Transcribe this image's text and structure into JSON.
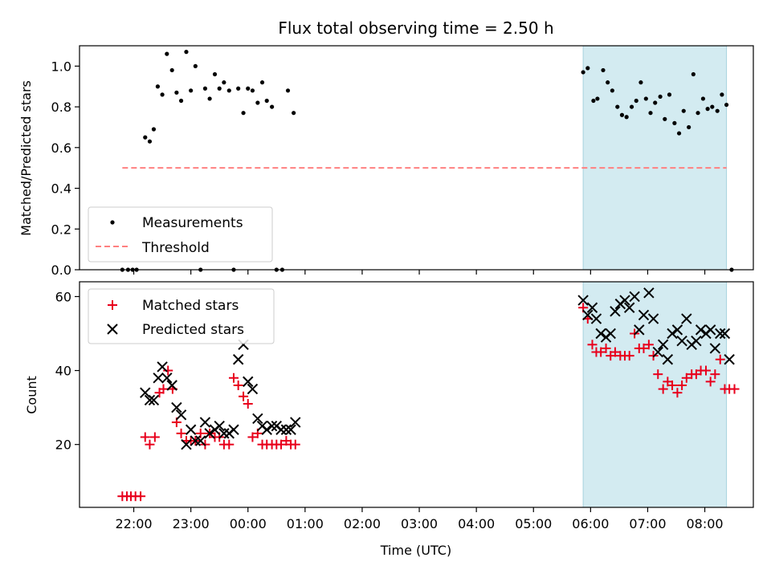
{
  "chart_data": {
    "title": "Flux total observing time = 2.50 h",
    "x_axis": {
      "label": "Time (UTC)",
      "range_hours": [
        21.05,
        32.85
      ],
      "ticks": [
        {
          "value": 22,
          "label": "22:00"
        },
        {
          "value": 23,
          "label": "23:00"
        },
        {
          "value": 24,
          "label": "00:00"
        },
        {
          "value": 25,
          "label": "01:00"
        },
        {
          "value": 26,
          "label": "02:00"
        },
        {
          "value": 27,
          "label": "03:00"
        },
        {
          "value": 28,
          "label": "04:00"
        },
        {
          "value": 29,
          "label": "05:00"
        },
        {
          "value": 30,
          "label": "06:00"
        },
        {
          "value": 31,
          "label": "07:00"
        },
        {
          "value": 32,
          "label": "08:00"
        }
      ]
    },
    "highlight_span": {
      "x_start": 29.87,
      "x_end": 32.38,
      "color": "#d3ebf1"
    },
    "panels": [
      {
        "type": "scatter",
        "ylabel": "Matched/Predicted stars",
        "ylim": [
          0,
          1.1
        ],
        "yticks": [
          0.0,
          0.2,
          0.4,
          0.6,
          0.8,
          1.0
        ],
        "ytick_labels": [
          "0.0",
          "0.2",
          "0.4",
          "0.6",
          "0.8",
          "1.0"
        ],
        "legend_position": "lower-left",
        "series": [
          {
            "name": "Measurements",
            "kind": "dot",
            "color": "#000000",
            "x": [
              21.8,
              21.9,
              21.98,
              22.05,
              22.2,
              22.28,
              22.35,
              22.42,
              22.5,
              22.58,
              22.67,
              22.75,
              22.83,
              22.92,
              23.0,
              23.08,
              23.17,
              23.25,
              23.33,
              23.42,
              23.5,
              23.58,
              23.67,
              23.75,
              23.83,
              23.92,
              24.0,
              24.08,
              24.17,
              24.25,
              24.33,
              24.42,
              24.5,
              24.6,
              24.7,
              24.8,
              29.87,
              29.95,
              30.05,
              30.12,
              30.22,
              30.3,
              30.38,
              30.47,
              30.55,
              30.63,
              30.72,
              30.8,
              30.88,
              30.97,
              31.05,
              31.13,
              31.22,
              31.3,
              31.38,
              31.47,
              31.55,
              31.63,
              31.72,
              31.8,
              31.88,
              31.97,
              32.05,
              32.13,
              32.22,
              32.3,
              32.38,
              32.47
            ],
            "y": [
              0,
              0,
              0,
              0,
              0.65,
              0.63,
              0.69,
              0.9,
              0.86,
              1.06,
              0.98,
              0.87,
              0.83,
              1.07,
              0.88,
              1.0,
              0,
              0.89,
              0.84,
              0.96,
              0.89,
              0.92,
              0.88,
              0,
              0.89,
              0.77,
              0.89,
              0.88,
              0.82,
              0.92,
              0.83,
              0.8,
              0,
              0,
              0.88,
              0.77,
              0.97,
              0.99,
              0.83,
              0.84,
              0.98,
              0.92,
              0.88,
              0.8,
              0.76,
              0.75,
              0.8,
              0.83,
              0.92,
              0.84,
              0.77,
              0.82,
              0.85,
              0.74,
              0.86,
              0.72,
              0.67,
              0.78,
              0.7,
              0.96,
              0.77,
              0.84,
              0.79,
              0.8,
              0.78,
              0.86,
              0.81,
              0
            ]
          },
          {
            "name": "Threshold",
            "kind": "dashed-line",
            "color": "#ff8080",
            "x": [
              21.8,
              32.38
            ],
            "y": [
              0.5,
              0.5
            ]
          }
        ]
      },
      {
        "type": "scatter",
        "ylabel": "Count",
        "ylim": [
          3,
          64
        ],
        "yticks": [
          20,
          40,
          60
        ],
        "ytick_labels": [
          "20",
          "40",
          "60"
        ],
        "legend_position": "upper-left",
        "series": [
          {
            "name": "Matched stars",
            "kind": "plus",
            "color": "#e8001c",
            "x": [
              21.8,
              21.88,
              21.95,
              22.03,
              22.12,
              22.2,
              22.28,
              22.37,
              22.45,
              22.52,
              22.6,
              22.68,
              22.75,
              22.83,
              22.92,
              23.0,
              23.08,
              23.17,
              23.25,
              23.33,
              23.42,
              23.5,
              23.58,
              23.67,
              23.75,
              23.83,
              23.92,
              24.0,
              24.08,
              24.17,
              24.25,
              24.33,
              24.42,
              24.5,
              24.58,
              24.67,
              24.75,
              24.83,
              29.87,
              29.95,
              30.03,
              30.1,
              30.18,
              30.27,
              30.35,
              30.43,
              30.52,
              30.6,
              30.68,
              30.77,
              30.85,
              30.93,
              31.02,
              31.1,
              31.18,
              31.27,
              31.35,
              31.43,
              31.52,
              31.6,
              31.68,
              31.77,
              31.85,
              31.93,
              32.02,
              32.1,
              32.18,
              32.27,
              32.35,
              32.43,
              32.52
            ],
            "y": [
              6,
              6,
              6,
              6,
              6,
              22,
              20,
              22,
              34,
              35,
              40,
              35,
              26,
              23,
              21,
              21,
              21,
              23,
              20,
              23,
              22,
              22,
              20,
              20,
              38,
              36,
              33,
              31,
              22,
              23,
              20,
              20,
              20,
              20,
              20,
              21,
              20,
              20,
              57,
              54,
              47,
              45,
              45,
              46,
              44,
              45,
              44,
              44,
              44,
              50,
              46,
              46,
              47,
              44,
              39,
              35,
              37,
              36,
              34,
              36,
              38,
              39,
              39,
              40,
              40,
              37,
              39,
              43,
              35,
              35,
              35
            ]
          },
          {
            "name": "Predicted stars",
            "kind": "x",
            "color": "#000000",
            "x": [
              22.2,
              22.28,
              22.35,
              22.43,
              22.5,
              22.58,
              22.67,
              22.75,
              22.83,
              22.92,
              23.0,
              23.08,
              23.17,
              23.25,
              23.33,
              23.42,
              23.5,
              23.58,
              23.67,
              23.75,
              23.83,
              23.92,
              24.0,
              24.08,
              24.17,
              24.25,
              24.33,
              24.42,
              24.5,
              24.58,
              24.67,
              24.75,
              24.83,
              29.87,
              29.95,
              30.03,
              30.1,
              30.18,
              30.27,
              30.35,
              30.43,
              30.52,
              30.6,
              30.68,
              30.77,
              30.85,
              30.93,
              31.02,
              31.1,
              31.18,
              31.27,
              31.35,
              31.43,
              31.52,
              31.6,
              31.68,
              31.77,
              31.85,
              31.93,
              32.02,
              32.1,
              32.18,
              32.27,
              32.35,
              32.43
            ],
            "y": [
              34,
              32,
              32,
              38,
              41,
              38,
              36,
              30,
              28,
              20,
              24,
              21,
              21,
              26,
              23,
              24,
              25,
              23,
              23,
              24,
              43,
              47,
              37,
              35,
              27,
              25,
              24,
              25,
              25,
              24,
              24,
              24,
              26,
              59,
              55,
              57,
              54,
              50,
              49,
              50,
              56,
              58,
              59,
              57,
              60,
              51,
              55,
              61,
              54,
              45,
              47,
              43,
              50,
              51,
              48,
              54,
              47,
              48,
              51,
              50,
              51,
              46,
              50,
              50,
              43
            ]
          }
        ]
      }
    ]
  }
}
